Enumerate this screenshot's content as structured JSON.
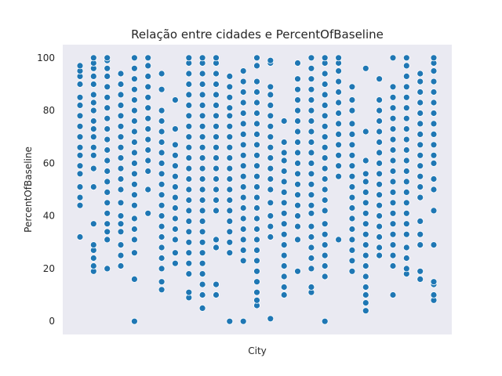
{
  "chart_data": {
    "type": "scatter",
    "title": "Relação entre cidades e PercentOfBaseline",
    "xlabel": "City",
    "ylabel": "PercentOfBaseline",
    "ylim": [
      -5,
      105
    ],
    "yticks": [
      0,
      20,
      40,
      60,
      80,
      100
    ],
    "xticks": [],
    "grid": false,
    "background": "#eaeaf2",
    "point_color": "#1f77b4",
    "series": [
      {
        "ymin": 32,
        "ymax": 97,
        "values": [
          32,
          44,
          47,
          51,
          56,
          59,
          63,
          66,
          70,
          74,
          78,
          82,
          85,
          90,
          93,
          95,
          97
        ]
      },
      {
        "ymin": 19,
        "ymax": 100,
        "values": [
          19,
          21,
          24,
          27,
          29,
          37,
          51,
          58,
          63,
          66,
          70,
          73,
          76,
          80,
          83,
          86,
          90,
          93,
          96,
          98,
          100
        ]
      },
      {
        "ymin": 20,
        "ymax": 100,
        "values": [
          20,
          31,
          34,
          37,
          41,
          45,
          49,
          53,
          57,
          61,
          65,
          69,
          73,
          77,
          81,
          85,
          89,
          93,
          96,
          99,
          100
        ]
      },
      {
        "ymin": 21,
        "ymax": 94,
        "values": [
          21,
          25,
          29,
          34,
          37,
          40,
          45,
          50,
          54,
          58,
          62,
          66,
          70,
          74,
          78,
          82,
          86,
          90,
          94
        ]
      },
      {
        "ymin": 0,
        "ymax": 100,
        "values": [
          0,
          16,
          26,
          31,
          35,
          39,
          44,
          48,
          52,
          56,
          60,
          64,
          68,
          72,
          76,
          80,
          84,
          88,
          92,
          96,
          100
        ]
      },
      {
        "ymin": 41,
        "ymax": 100,
        "values": [
          41,
          50,
          57,
          61,
          65,
          69,
          73,
          77,
          81,
          85,
          89,
          93,
          97,
          100
        ]
      },
      {
        "ymin": 12,
        "ymax": 94,
        "values": [
          12,
          15,
          20,
          24,
          28,
          32,
          36,
          40,
          44,
          48,
          52,
          56,
          60,
          64,
          68,
          72,
          76,
          80,
          88,
          94
        ]
      },
      {
        "ymin": 22,
        "ymax": 84,
        "values": [
          22,
          26,
          31,
          35,
          39,
          43,
          47,
          51,
          55,
          59,
          63,
          67,
          73,
          84
        ]
      },
      {
        "ymin": 9,
        "ymax": 100,
        "values": [
          9,
          11,
          18,
          22,
          26,
          30,
          34,
          38,
          42,
          46,
          50,
          54,
          58,
          62,
          66,
          70,
          74,
          78,
          82,
          86,
          90,
          94,
          98,
          100
        ]
      },
      {
        "ymin": 5,
        "ymax": 100,
        "values": [
          5,
          10,
          14,
          18,
          22,
          26,
          30,
          34,
          38,
          42,
          46,
          50,
          54,
          58,
          62,
          66,
          70,
          74,
          78,
          82,
          86,
          90,
          94,
          98,
          100
        ]
      },
      {
        "ymin": 10,
        "ymax": 100,
        "values": [
          10,
          14,
          28,
          31,
          42,
          46,
          50,
          54,
          58,
          62,
          66,
          70,
          74,
          78,
          82,
          86,
          90,
          94,
          98,
          100
        ]
      },
      {
        "ymin": 0,
        "ymax": 93,
        "values": [
          0,
          26,
          30,
          34,
          38,
          42,
          46,
          50,
          54,
          58,
          62,
          66,
          70,
          74,
          78,
          81,
          85,
          89,
          93
        ]
      },
      {
        "ymin": 0,
        "ymax": 95,
        "values": [
          0,
          23,
          27,
          31,
          35,
          39,
          43,
          47,
          51,
          55,
          59,
          63,
          67,
          71,
          75,
          79,
          83,
          87,
          91,
          95
        ]
      },
      {
        "ymin": 6,
        "ymax": 100,
        "values": [
          6,
          8,
          11,
          15,
          19,
          23,
          27,
          31,
          35,
          39,
          43,
          47,
          51,
          55,
          59,
          63,
          67,
          71,
          75,
          79,
          83,
          87,
          91,
          97,
          100
        ]
      },
      {
        "ymin": 1,
        "ymax": 99,
        "values": [
          1,
          32,
          36,
          40,
          45,
          50,
          54,
          58,
          62,
          66,
          70,
          74,
          78,
          82,
          86,
          89,
          98,
          99
        ]
      },
      {
        "ymin": 10,
        "ymax": 76,
        "values": [
          10,
          13,
          17,
          21,
          25,
          29,
          33,
          37,
          41,
          45,
          49,
          53,
          57,
          61,
          64,
          68,
          76
        ]
      },
      {
        "ymin": 19,
        "ymax": 98,
        "values": [
          19,
          31,
          36,
          40,
          44,
          48,
          52,
          56,
          60,
          64,
          68,
          72,
          76,
          80,
          84,
          88,
          92,
          98
        ]
      },
      {
        "ymin": 11,
        "ymax": 100,
        "values": [
          11,
          13,
          20,
          24,
          28,
          32,
          36,
          41,
          44,
          48,
          52,
          56,
          60,
          64,
          68,
          72,
          76,
          80,
          84,
          88,
          92,
          96,
          100
        ]
      },
      {
        "ymin": 0,
        "ymax": 100,
        "values": [
          0,
          17,
          21,
          25,
          29,
          33,
          37,
          42,
          46,
          50,
          54,
          58,
          62,
          66,
          70,
          74,
          78,
          82,
          86,
          90,
          94,
          98,
          100
        ]
      },
      {
        "ymin": 31,
        "ymax": 100,
        "values": [
          31,
          55,
          59,
          63,
          67,
          71,
          75,
          79,
          83,
          87,
          91,
          95,
          98,
          100
        ]
      },
      {
        "ymin": 19,
        "ymax": 89,
        "values": [
          19,
          23,
          27,
          31,
          35,
          39,
          43,
          47,
          51,
          55,
          59,
          63,
          67,
          71,
          75,
          80,
          84,
          89
        ]
      },
      {
        "ymin": 4,
        "ymax": 96,
        "values": [
          4,
          7,
          10,
          13,
          17,
          21,
          25,
          29,
          33,
          37,
          41,
          45,
          49,
          53,
          56,
          61,
          72,
          96
        ]
      },
      {
        "ymin": 25,
        "ymax": 92,
        "values": [
          25,
          28,
          32,
          36,
          40,
          44,
          48,
          52,
          56,
          60,
          64,
          68,
          72,
          76,
          80,
          84,
          92
        ]
      },
      {
        "ymin": 10,
        "ymax": 100,
        "values": [
          10,
          21,
          25,
          29,
          33,
          37,
          41,
          45,
          49,
          53,
          57,
          61,
          65,
          69,
          73,
          77,
          81,
          85,
          89,
          100
        ]
      },
      {
        "ymin": 18,
        "ymax": 100,
        "values": [
          18,
          20,
          24,
          28,
          33,
          37,
          41,
          45,
          49,
          53,
          57,
          61,
          65,
          69,
          73,
          77,
          81,
          85,
          89,
          93,
          97,
          100
        ]
      },
      {
        "ymin": 16,
        "ymax": 94,
        "values": [
          16,
          19,
          29,
          33,
          38,
          47,
          51,
          55,
          59,
          63,
          67,
          71,
          75,
          79,
          83,
          87,
          91,
          94
        ]
      },
      {
        "ymin": 8,
        "ymax": 100,
        "values": [
          8,
          10,
          14,
          15,
          29,
          42,
          50,
          54,
          60,
          63,
          67,
          71,
          75,
          79,
          83,
          87,
          91,
          95,
          98,
          100
        ]
      }
    ]
  }
}
